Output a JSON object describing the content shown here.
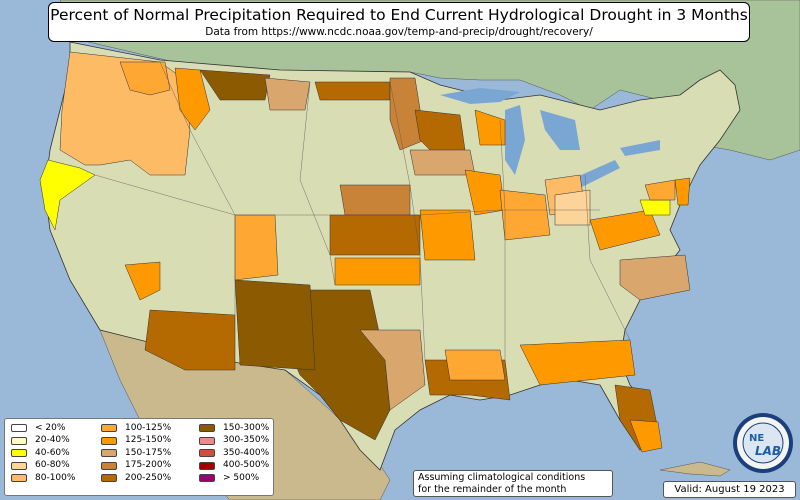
{
  "title": "Percent of Normal Precipitation Required to End Current Hydrological Drought in 3 Months",
  "subtitle": "Data from https://www.ncdc.noaa.gov/temp-and-precip/drought/recovery/",
  "legend": [
    {
      "label": "< 20%",
      "color": "#ffffff"
    },
    {
      "label": "20-40%",
      "color": "#fdfbbd"
    },
    {
      "label": "40-60%",
      "color": "#ffff00"
    },
    {
      "label": "60-80%",
      "color": "#fcd49a"
    },
    {
      "label": "80-100%",
      "color": "#fdbb66"
    },
    {
      "label": "100-125%",
      "color": "#ffa733"
    },
    {
      "label": "125-150%",
      "color": "#ff9900"
    },
    {
      "label": "150-175%",
      "color": "#d9a66e"
    },
    {
      "label": "175-200%",
      "color": "#c98338"
    },
    {
      "label": "200-250%",
      "color": "#b46a00"
    },
    {
      "label": "150-300%",
      "color": "#8c5a00"
    },
    {
      "label": "300-350%",
      "color": "#f08a8a"
    },
    {
      "label": "350-400%",
      "color": "#d94a3a"
    },
    {
      "label": "400-500%",
      "color": "#a00000"
    },
    {
      "label": "> 500%",
      "color": "#9c006e"
    }
  ],
  "note": {
    "line1": "Assuming climatological conditions",
    "line2": "for the remainder of the month"
  },
  "valid": "Valid: August 19 2023",
  "logo": {
    "text1": "NE",
    "text2": "LAB"
  },
  "colors": {
    "ocean": "#9ab8d8",
    "land": "#d9ddb4",
    "canada": "#a8c39a",
    "mexico": "#c9b98c",
    "lake": "#7aa6d4"
  }
}
